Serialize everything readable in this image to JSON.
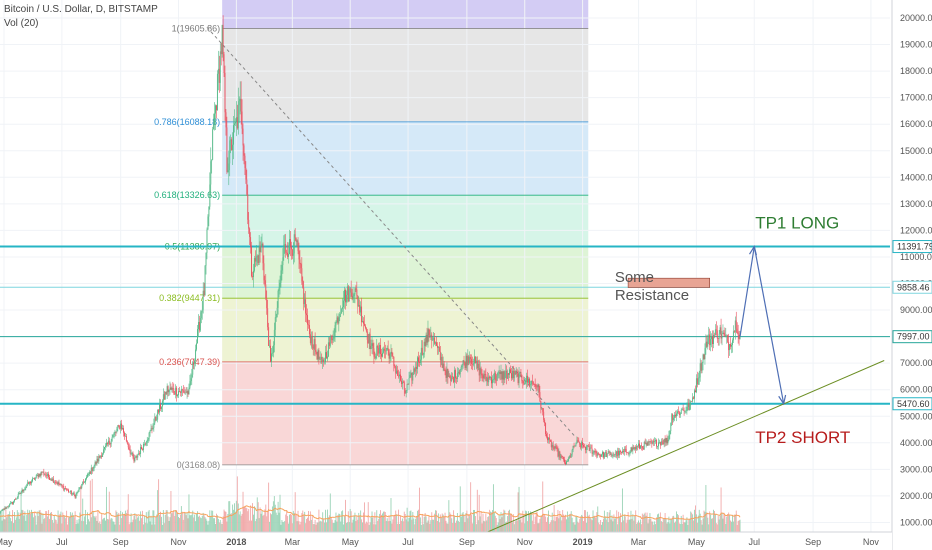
{
  "legend": {
    "symbol_line": "Bitcoin / U.S. Dollar, D, BITSTAMP",
    "volume_line": "Vol (20)"
  },
  "chart_data": {
    "type": "candlestick",
    "x_ticks": [
      {
        "label": "May",
        "date": "2017-05-01"
      },
      {
        "label": "Jul",
        "date": "2017-07-01"
      },
      {
        "label": "Sep",
        "date": "2017-09-01"
      },
      {
        "label": "Nov",
        "date": "2017-11-01"
      },
      {
        "label": "2018",
        "date": "2018-01-01",
        "bold": true
      },
      {
        "label": "Mar",
        "date": "2018-03-01"
      },
      {
        "label": "May",
        "date": "2018-05-01"
      },
      {
        "label": "Jul",
        "date": "2018-07-01"
      },
      {
        "label": "Sep",
        "date": "2018-09-01"
      },
      {
        "label": "Nov",
        "date": "2018-11-01"
      },
      {
        "label": "2019",
        "date": "2019-01-01",
        "bold": true
      },
      {
        "label": "Mar",
        "date": "2019-03-01"
      },
      {
        "label": "May",
        "date": "2019-05-01"
      },
      {
        "label": "Jul",
        "date": "2019-07-01"
      },
      {
        "label": "Sep",
        "date": "2019-09-01"
      },
      {
        "label": "Nov",
        "date": "2019-11-01"
      }
    ],
    "y_ticks": [
      20000,
      19000,
      18000,
      17000,
      16000,
      15000,
      14000,
      13000,
      12000,
      11000,
      10000,
      9000,
      8000,
      7000,
      6000,
      5000,
      4000,
      3000,
      2000,
      1000
    ],
    "y_tick_labels": [
      "20000.00",
      "19000.00",
      "18000.00",
      "17000.00",
      "16000.00",
      "15000.00",
      "14000.00",
      "13000.00",
      "12000.00",
      "11000.00",
      "10000.00",
      "9000.00",
      "8000.00",
      "7000.00",
      "6000.00",
      "5000.00",
      "4000.00",
      "3000.00",
      "2000.00",
      "1000.00"
    ],
    "price_path": [
      [
        "2017-04-20",
        1200
      ],
      [
        "2017-05-10",
        1750
      ],
      [
        "2017-05-25",
        2400
      ],
      [
        "2017-06-10",
        2900
      ],
      [
        "2017-07-15",
        2000
      ],
      [
        "2017-08-05",
        3200
      ],
      [
        "2017-09-01",
        4700
      ],
      [
        "2017-09-15",
        3300
      ],
      [
        "2017-10-01",
        4300
      ],
      [
        "2017-10-20",
        6000
      ],
      [
        "2017-11-12",
        5900
      ],
      [
        "2017-11-28",
        9700
      ],
      [
        "2017-12-07",
        15500
      ],
      [
        "2017-12-17",
        19300
      ],
      [
        "2017-12-22",
        14500
      ],
      [
        "2018-01-06",
        16800
      ],
      [
        "2018-01-17",
        10500
      ],
      [
        "2018-01-28",
        11400
      ],
      [
        "2018-02-06",
        6900
      ],
      [
        "2018-02-20",
        11300
      ],
      [
        "2018-03-05",
        11500
      ],
      [
        "2018-03-18",
        8200
      ],
      [
        "2018-04-01",
        6900
      ],
      [
        "2018-04-12",
        8000
      ],
      [
        "2018-04-24",
        9500
      ],
      [
        "2018-05-05",
        9800
      ],
      [
        "2018-05-25",
        7400
      ],
      [
        "2018-06-10",
        7500
      ],
      [
        "2018-06-28",
        5900
      ],
      [
        "2018-07-24",
        8200
      ],
      [
        "2018-08-14",
        6300
      ],
      [
        "2018-09-04",
        7300
      ],
      [
        "2018-09-20",
        6400
      ],
      [
        "2018-10-15",
        6600
      ],
      [
        "2018-11-14",
        6200
      ],
      [
        "2018-11-25",
        4100
      ],
      [
        "2018-12-15",
        3200
      ],
      [
        "2018-12-25",
        4000
      ],
      [
        "2019-01-20",
        3550
      ],
      [
        "2019-02-10",
        3600
      ],
      [
        "2019-03-01",
        3850
      ],
      [
        "2019-04-01",
        4100
      ],
      [
        "2019-04-05",
        5000
      ],
      [
        "2019-04-25",
        5400
      ],
      [
        "2019-05-12",
        7800
      ],
      [
        "2019-05-25",
        8200
      ],
      [
        "2019-06-05",
        7700
      ],
      [
        "2019-06-12",
        8600
      ],
      [
        "2019-06-16",
        7997
      ]
    ],
    "fibonacci": {
      "x_start": "2017-12-17",
      "x_end": "2019-01-07",
      "levels": [
        {
          "ratio": 1,
          "price": 19605.86,
          "label": "1(19605.86)",
          "color": "#7a7a7a",
          "fill": "#e6e6e6"
        },
        {
          "ratio": 0.786,
          "price": 16088.18,
          "label": "0.786(16088.18)",
          "color": "#2f8fd6",
          "fill": "#d5e9f8"
        },
        {
          "ratio": 0.618,
          "price": 13326.63,
          "label": "0.618(13326.63)",
          "color": "#22b07d",
          "fill": "#d6f5e8"
        },
        {
          "ratio": 0.5,
          "price": 11386.97,
          "label": "0.5(11386.97)",
          "color": "#34a853",
          "fill": "#def4d6"
        },
        {
          "ratio": 0.382,
          "price": 9447.31,
          "label": "0.382(9447.31)",
          "color": "#8bbc21",
          "fill": "#eef3d3"
        },
        {
          "ratio": 0.236,
          "price": 7047.39,
          "label": "0.236(7047.39)",
          "color": "#d9534f",
          "fill": "#f9d7d7"
        },
        {
          "ratio": 0,
          "price": 3168.08,
          "label": "0(3168.08)",
          "color": "#888888",
          "fill": "none"
        }
      ],
      "top_fill": "#d3ccf4"
    },
    "horizontal_lines": [
      {
        "price": 11391.79,
        "label": "11391.79",
        "color": "#26b5c5",
        "bold": true
      },
      {
        "price": 9858.46,
        "label": "9858.46",
        "color": "#7fd6df",
        "bold": false
      },
      {
        "price": 7997.0,
        "label": "7997.00",
        "color": "#26a69a",
        "bold": false
      },
      {
        "price": 5470.6,
        "label": "5470.60",
        "color": "#26b5c5",
        "bold": true
      }
    ],
    "trendline": {
      "start": [
        "2018-08-20",
        120
      ],
      "end": [
        "2019-11-15",
        7100
      ],
      "color": "#6b8e23"
    },
    "dashed_diagonal": {
      "start": [
        "2017-12-01",
        19650
      ],
      "end": [
        "2018-12-25",
        4200
      ],
      "color": "#888888"
    },
    "projection_path": [
      [
        "2019-06-16",
        7997
      ],
      [
        "2019-07-01",
        11391.79
      ],
      [
        "2019-08-01",
        5470.6
      ]
    ],
    "volume_color_up": "#9ad3b6",
    "volume_color_down": "#f1a9a9",
    "volume_ma_color": "#f7a35c"
  },
  "annotations": {
    "tp1": "TP1 LONG",
    "tp2": "TP2 SHORT",
    "resistance_line1": "Some",
    "resistance_line2": "Resistance",
    "resistance_box": {
      "price_top": 10200,
      "price_bottom": 9850,
      "date_start": "2019-02-18",
      "date_end": "2019-05-15",
      "color": "#e8a494"
    }
  },
  "colors": {
    "tp1": "#2e7d32",
    "tp2": "#b71c1c",
    "arrow": "#4f6fb5",
    "text_gray": "#555555"
  }
}
